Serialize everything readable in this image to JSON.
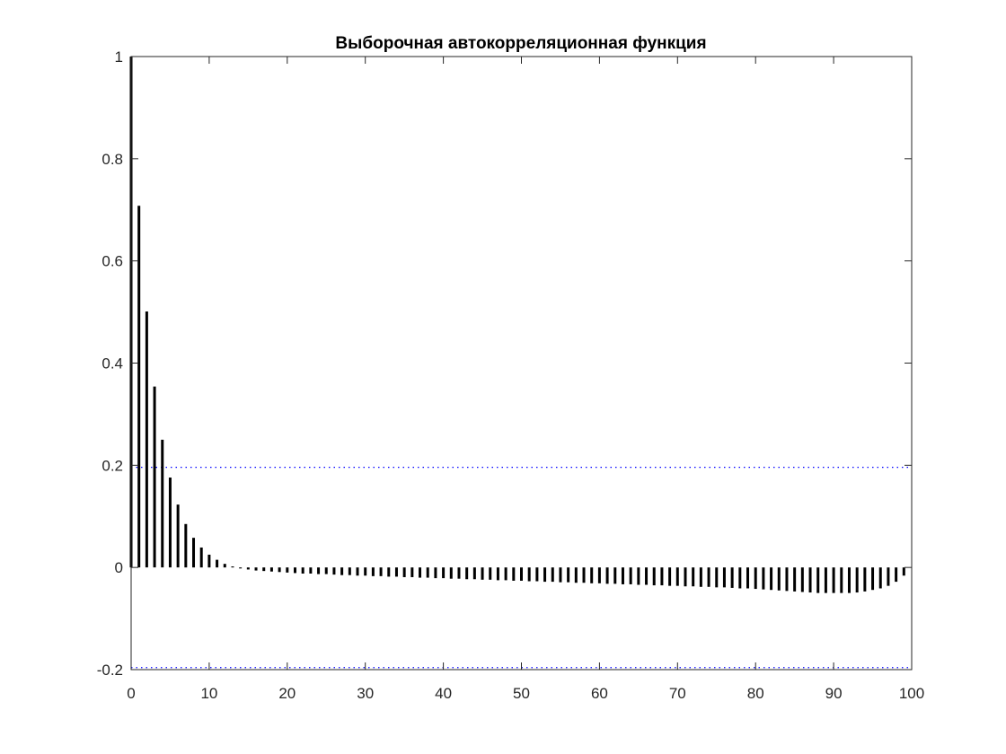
{
  "chart_data": {
    "type": "stem",
    "title": "Выборочная автокорреляционная функция",
    "xlabel": "",
    "ylabel": "",
    "xlim": [
      0,
      100
    ],
    "ylim": [
      -0.2,
      1
    ],
    "xticks": [
      0,
      10,
      20,
      30,
      40,
      50,
      60,
      70,
      80,
      90,
      100
    ],
    "yticks": [
      -0.2,
      0,
      0.2,
      0.4,
      0.6,
      0.8,
      1
    ],
    "ytick_labels": [
      "-0.2",
      "0",
      "0.2",
      "0.4",
      "0.6",
      "0.8",
      "1"
    ],
    "grid": false,
    "confidence_bounds": [
      0.196,
      -0.196
    ],
    "stem_color": "#000000",
    "bound_color": "#0000ff",
    "lags": [
      0,
      1,
      2,
      3,
      4,
      5,
      6,
      7,
      8,
      9,
      10,
      11,
      12,
      13,
      14,
      15,
      16,
      17,
      18,
      19,
      20,
      21,
      22,
      23,
      24,
      25,
      26,
      27,
      28,
      29,
      30,
      31,
      32,
      33,
      34,
      35,
      36,
      37,
      38,
      39,
      40,
      41,
      42,
      43,
      44,
      45,
      46,
      47,
      48,
      49,
      50,
      51,
      52,
      53,
      54,
      55,
      56,
      57,
      58,
      59,
      60,
      61,
      62,
      63,
      64,
      65,
      66,
      67,
      68,
      69,
      70,
      71,
      72,
      73,
      74,
      75,
      76,
      77,
      78,
      79,
      80,
      81,
      82,
      83,
      84,
      85,
      86,
      87,
      88,
      89,
      90,
      91,
      92,
      93,
      94,
      95,
      96,
      97,
      98,
      99
    ],
    "values": [
      1.0,
      0.708,
      0.501,
      0.354,
      0.25,
      0.176,
      0.123,
      0.085,
      0.058,
      0.039,
      0.025,
      0.015,
      0.007,
      0.002,
      -0.002,
      -0.004,
      -0.006,
      -0.007,
      -0.008,
      -0.009,
      -0.01,
      -0.011,
      -0.012,
      -0.012,
      -0.013,
      -0.013,
      -0.014,
      -0.015,
      -0.015,
      -0.016,
      -0.016,
      -0.017,
      -0.017,
      -0.018,
      -0.018,
      -0.019,
      -0.019,
      -0.02,
      -0.02,
      -0.021,
      -0.021,
      -0.022,
      -0.022,
      -0.023,
      -0.023,
      -0.024,
      -0.024,
      -0.025,
      -0.025,
      -0.026,
      -0.026,
      -0.027,
      -0.027,
      -0.028,
      -0.028,
      -0.029,
      -0.029,
      -0.03,
      -0.03,
      -0.031,
      -0.031,
      -0.032,
      -0.032,
      -0.033,
      -0.033,
      -0.034,
      -0.034,
      -0.035,
      -0.035,
      -0.036,
      -0.036,
      -0.037,
      -0.037,
      -0.038,
      -0.038,
      -0.039,
      -0.039,
      -0.04,
      -0.041,
      -0.041,
      -0.042,
      -0.043,
      -0.044,
      -0.045,
      -0.046,
      -0.047,
      -0.048,
      -0.049,
      -0.05,
      -0.05,
      -0.05,
      -0.05,
      -0.05,
      -0.049,
      -0.047,
      -0.044,
      -0.041,
      -0.036,
      -0.028,
      -0.016
    ]
  }
}
